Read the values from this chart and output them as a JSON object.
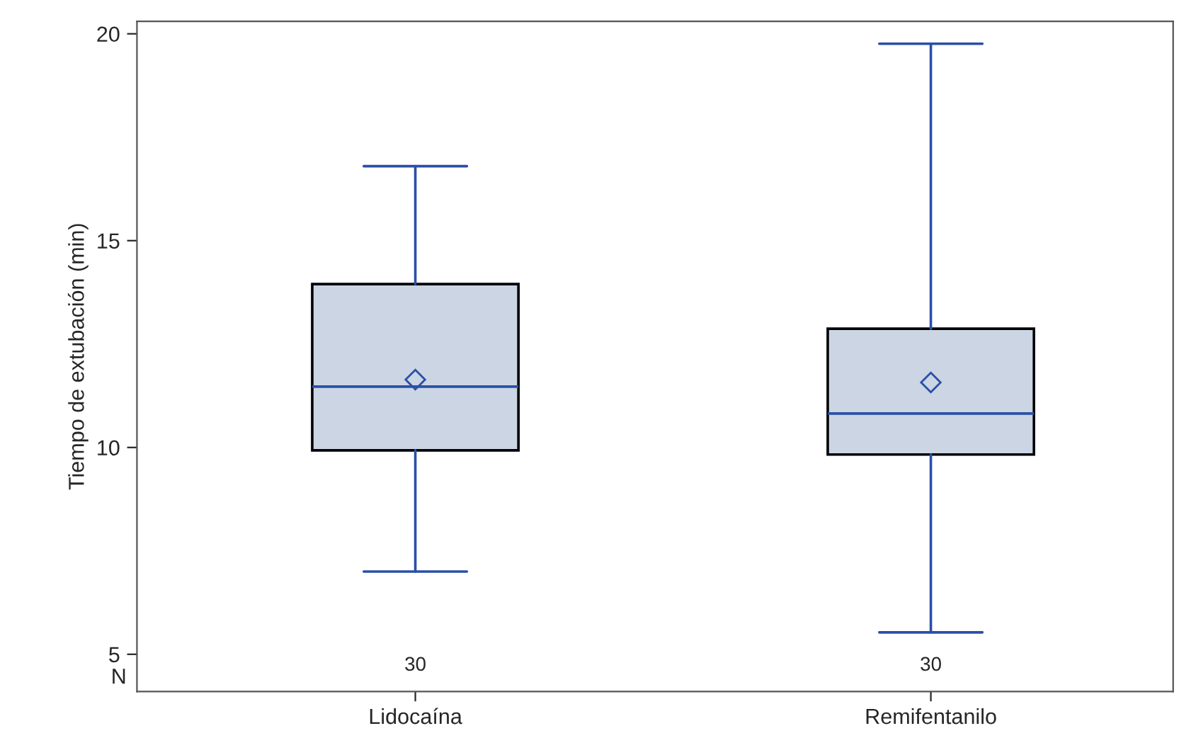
{
  "chart_data": {
    "type": "box",
    "ylabel": "Tiempo de extubación (min)",
    "categories": [
      "Lidocaína",
      "Remifentanilo"
    ],
    "boxes": [
      {
        "low": 7.0,
        "q1": 9.93,
        "median": 11.47,
        "q3": 13.95,
        "high": 16.8,
        "mean": 11.64
      },
      {
        "low": 5.53,
        "q1": 9.83,
        "median": 10.82,
        "q3": 12.87,
        "high": 19.76,
        "mean": 11.57
      }
    ],
    "color": "#cbd5e3",
    "ylim": [
      4.1,
      20.3
    ],
    "yticks": [
      5,
      10,
      15,
      20
    ],
    "grid": false,
    "annotations": [
      "N",
      "30",
      "30"
    ]
  }
}
